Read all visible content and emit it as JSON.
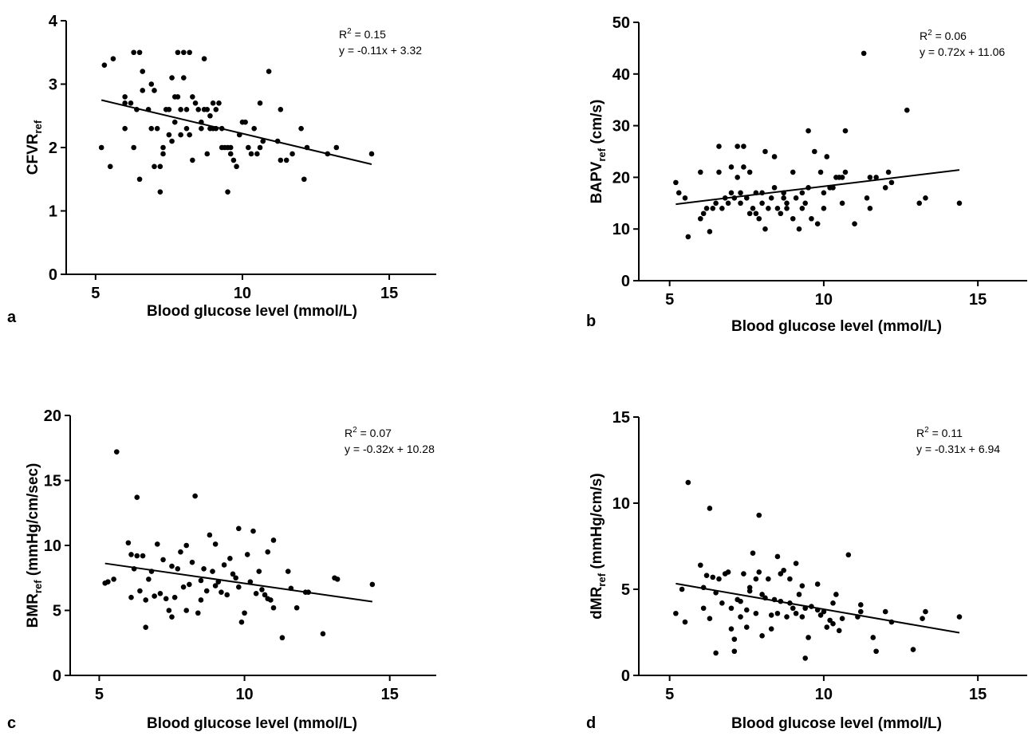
{
  "chart_data": [
    {
      "type": "scatter",
      "panel_label": "a",
      "xlabel": "Blood glucose level (mmol/L)",
      "ylabel_main": "CFVR",
      "ylabel_sub": "ref",
      "ylabel_rest": "",
      "xlim": [
        4,
        16.6
      ],
      "ylim": [
        0,
        4
      ],
      "xticks": [
        5,
        10,
        15
      ],
      "yticks": [
        0,
        1,
        2,
        3,
        4
      ],
      "r2_label": "R",
      "r2_sup": "2",
      "r2_value": " = 0.15",
      "equation": "y = -0.11x + 3.32",
      "trendline": {
        "slope": -0.11,
        "intercept": 3.32,
        "x_start": 5.2,
        "x_end": 14.4
      },
      "points": [
        [
          5.2,
          2.0
        ],
        [
          5.3,
          3.3
        ],
        [
          5.5,
          1.7
        ],
        [
          5.6,
          3.4
        ],
        [
          6.0,
          2.8
        ],
        [
          6.0,
          2.7
        ],
        [
          6.0,
          2.3
        ],
        [
          6.2,
          2.7
        ],
        [
          6.3,
          3.5
        ],
        [
          6.3,
          2.0
        ],
        [
          6.4,
          2.6
        ],
        [
          6.5,
          3.5
        ],
        [
          6.5,
          1.5
        ],
        [
          6.6,
          3.2
        ],
        [
          6.6,
          2.9
        ],
        [
          6.8,
          2.6
        ],
        [
          6.9,
          3.0
        ],
        [
          6.9,
          2.3
        ],
        [
          7.0,
          2.9
        ],
        [
          7.0,
          1.7
        ],
        [
          7.1,
          2.3
        ],
        [
          7.2,
          1.3
        ],
        [
          7.2,
          1.7
        ],
        [
          7.3,
          2.0
        ],
        [
          7.3,
          1.9
        ],
        [
          7.4,
          2.6
        ],
        [
          7.5,
          2.6
        ],
        [
          7.5,
          2.2
        ],
        [
          7.6,
          3.1
        ],
        [
          7.6,
          2.1
        ],
        [
          7.7,
          2.4
        ],
        [
          7.7,
          2.8
        ],
        [
          7.8,
          3.5
        ],
        [
          7.8,
          2.8
        ],
        [
          7.9,
          2.2
        ],
        [
          7.9,
          2.6
        ],
        [
          8.0,
          3.1
        ],
        [
          8.0,
          3.5
        ],
        [
          8.1,
          2.3
        ],
        [
          8.1,
          2.6
        ],
        [
          8.2,
          3.5
        ],
        [
          8.2,
          2.2
        ],
        [
          8.3,
          1.8
        ],
        [
          8.3,
          2.8
        ],
        [
          8.4,
          2.7
        ],
        [
          8.5,
          2.6
        ],
        [
          8.6,
          2.3
        ],
        [
          8.6,
          2.4
        ],
        [
          8.7,
          3.4
        ],
        [
          8.7,
          2.6
        ],
        [
          8.8,
          1.9
        ],
        [
          8.8,
          2.6
        ],
        [
          8.9,
          2.3
        ],
        [
          8.9,
          2.5
        ],
        [
          9.0,
          2.7
        ],
        [
          9.0,
          2.3
        ],
        [
          9.1,
          2.3
        ],
        [
          9.1,
          2.6
        ],
        [
          9.2,
          2.7
        ],
        [
          9.3,
          2.0
        ],
        [
          9.3,
          2.3
        ],
        [
          9.4,
          2.0
        ],
        [
          9.5,
          1.3
        ],
        [
          9.5,
          2.0
        ],
        [
          9.6,
          1.9
        ],
        [
          9.6,
          2.0
        ],
        [
          9.7,
          1.8
        ],
        [
          9.8,
          1.7
        ],
        [
          9.9,
          2.2
        ],
        [
          10.0,
          2.4
        ],
        [
          10.1,
          2.4
        ],
        [
          10.2,
          2.0
        ],
        [
          10.3,
          1.9
        ],
        [
          10.4,
          2.3
        ],
        [
          10.5,
          1.9
        ],
        [
          10.6,
          2.7
        ],
        [
          10.6,
          2.0
        ],
        [
          10.7,
          2.1
        ],
        [
          10.9,
          3.2
        ],
        [
          11.2,
          2.1
        ],
        [
          11.3,
          1.8
        ],
        [
          11.3,
          2.6
        ],
        [
          11.5,
          1.8
        ],
        [
          11.7,
          1.9
        ],
        [
          12.0,
          2.3
        ],
        [
          12.1,
          1.5
        ],
        [
          12.2,
          2.0
        ],
        [
          12.9,
          1.9
        ],
        [
          13.2,
          2.0
        ],
        [
          14.4,
          1.9
        ]
      ]
    },
    {
      "type": "scatter",
      "panel_label": "b",
      "xlabel": "Blood glucose level (mmol/L)",
      "ylabel_main": "BAPV",
      "ylabel_sub": "ref",
      "ylabel_rest": " (cm/s)",
      "xlim": [
        4,
        16.6
      ],
      "ylim": [
        0,
        50
      ],
      "xticks": [
        5,
        10,
        15
      ],
      "yticks": [
        0,
        10,
        20,
        30,
        40,
        50
      ],
      "r2_label": "R",
      "r2_sup": "2",
      "r2_value": " = 0.06",
      "equation": "y = 0.72x + 11.06",
      "trendline": {
        "slope": 0.72,
        "intercept": 11.06,
        "x_start": 5.2,
        "x_end": 14.4
      },
      "points": [
        [
          5.2,
          19
        ],
        [
          5.3,
          17
        ],
        [
          5.5,
          16
        ],
        [
          5.6,
          8.5
        ],
        [
          6.0,
          12
        ],
        [
          6.0,
          21
        ],
        [
          6.1,
          13
        ],
        [
          6.2,
          14
        ],
        [
          6.3,
          9.5
        ],
        [
          6.4,
          14
        ],
        [
          6.5,
          15
        ],
        [
          6.6,
          26
        ],
        [
          6.6,
          21
        ],
        [
          6.7,
          14
        ],
        [
          6.8,
          16
        ],
        [
          6.9,
          15
        ],
        [
          7.0,
          22
        ],
        [
          7.0,
          17
        ],
        [
          7.1,
          16
        ],
        [
          7.2,
          20
        ],
        [
          7.2,
          26
        ],
        [
          7.3,
          17
        ],
        [
          7.3,
          15
        ],
        [
          7.4,
          22
        ],
        [
          7.4,
          26
        ],
        [
          7.5,
          16
        ],
        [
          7.6,
          13
        ],
        [
          7.6,
          21
        ],
        [
          7.7,
          14
        ],
        [
          7.8,
          17
        ],
        [
          7.8,
          13
        ],
        [
          7.9,
          12
        ],
        [
          8.0,
          15
        ],
        [
          8.0,
          17
        ],
        [
          8.1,
          10
        ],
        [
          8.1,
          25
        ],
        [
          8.2,
          14
        ],
        [
          8.3,
          16
        ],
        [
          8.4,
          24
        ],
        [
          8.4,
          18
        ],
        [
          8.5,
          14
        ],
        [
          8.6,
          13
        ],
        [
          8.7,
          17
        ],
        [
          8.7,
          16
        ],
        [
          8.8,
          15
        ],
        [
          8.8,
          14
        ],
        [
          9.0,
          12
        ],
        [
          9.0,
          21
        ],
        [
          9.1,
          16
        ],
        [
          9.2,
          10
        ],
        [
          9.3,
          14
        ],
        [
          9.3,
          17
        ],
        [
          9.4,
          15
        ],
        [
          9.5,
          18
        ],
        [
          9.5,
          29
        ],
        [
          9.6,
          12
        ],
        [
          9.7,
          25
        ],
        [
          9.8,
          11
        ],
        [
          9.9,
          21
        ],
        [
          10.0,
          14
        ],
        [
          10.0,
          17
        ],
        [
          10.1,
          24
        ],
        [
          10.2,
          18
        ],
        [
          10.3,
          18
        ],
        [
          10.4,
          20
        ],
        [
          10.5,
          20
        ],
        [
          10.6,
          20
        ],
        [
          10.6,
          15
        ],
        [
          10.7,
          21
        ],
        [
          10.7,
          29
        ],
        [
          11.0,
          11
        ],
        [
          11.3,
          44
        ],
        [
          11.4,
          16
        ],
        [
          11.5,
          20
        ],
        [
          11.5,
          14
        ],
        [
          11.7,
          20
        ],
        [
          12.0,
          18
        ],
        [
          12.1,
          21
        ],
        [
          12.2,
          19
        ],
        [
          12.7,
          33
        ],
        [
          13.1,
          15
        ],
        [
          13.3,
          16
        ],
        [
          14.4,
          15
        ]
      ]
    },
    {
      "type": "scatter",
      "panel_label": "c",
      "xlabel": "Blood glucose level (mmol/L)",
      "ylabel_main": "BMR",
      "ylabel_sub": "ref",
      "ylabel_rest": " (mmHg/cm/sec)",
      "xlim": [
        4,
        16.6
      ],
      "ylim": [
        0,
        20
      ],
      "xticks": [
        5,
        10,
        15
      ],
      "yticks": [
        0,
        5,
        10,
        15,
        20
      ],
      "r2_label": "R",
      "r2_sup": "2",
      "r2_value": " = 0.07",
      "equation": "y = -0.32x + 10.28",
      "trendline": {
        "slope": -0.32,
        "intercept": 10.28,
        "x_start": 5.2,
        "x_end": 14.4
      },
      "points": [
        [
          5.2,
          7.1
        ],
        [
          5.3,
          7.2
        ],
        [
          5.5,
          7.4
        ],
        [
          5.6,
          17.2
        ],
        [
          6.0,
          10.2
        ],
        [
          6.1,
          9.3
        ],
        [
          6.1,
          6.0
        ],
        [
          6.2,
          8.2
        ],
        [
          6.3,
          13.7
        ],
        [
          6.3,
          9.2
        ],
        [
          6.4,
          6.5
        ],
        [
          6.5,
          9.2
        ],
        [
          6.6,
          5.8
        ],
        [
          6.6,
          3.7
        ],
        [
          6.7,
          7.4
        ],
        [
          6.8,
          8.0
        ],
        [
          6.9,
          6.1
        ],
        [
          7.0,
          10.1
        ],
        [
          7.1,
          6.3
        ],
        [
          7.2,
          8.9
        ],
        [
          7.3,
          5.9
        ],
        [
          7.4,
          5.0
        ],
        [
          7.5,
          8.4
        ],
        [
          7.5,
          4.5
        ],
        [
          7.6,
          6.0
        ],
        [
          7.7,
          8.2
        ],
        [
          7.8,
          9.5
        ],
        [
          7.9,
          6.8
        ],
        [
          8.0,
          10.0
        ],
        [
          8.0,
          5.0
        ],
        [
          8.1,
          7.0
        ],
        [
          8.2,
          8.7
        ],
        [
          8.3,
          13.8
        ],
        [
          8.4,
          4.8
        ],
        [
          8.5,
          7.3
        ],
        [
          8.5,
          5.8
        ],
        [
          8.6,
          8.2
        ],
        [
          8.7,
          6.5
        ],
        [
          8.8,
          10.8
        ],
        [
          8.9,
          8.0
        ],
        [
          9.0,
          6.9
        ],
        [
          9.0,
          10.1
        ],
        [
          9.1,
          7.2
        ],
        [
          9.2,
          6.4
        ],
        [
          9.3,
          8.5
        ],
        [
          9.4,
          6.2
        ],
        [
          9.5,
          9.0
        ],
        [
          9.6,
          7.8
        ],
        [
          9.7,
          7.5
        ],
        [
          9.8,
          11.3
        ],
        [
          9.8,
          6.8
        ],
        [
          9.9,
          4.1
        ],
        [
          10.0,
          4.8
        ],
        [
          10.1,
          9.3
        ],
        [
          10.2,
          7.2
        ],
        [
          10.3,
          11.1
        ],
        [
          10.4,
          6.3
        ],
        [
          10.5,
          8.0
        ],
        [
          10.6,
          6.6
        ],
        [
          10.7,
          6.2
        ],
        [
          10.8,
          5.9
        ],
        [
          10.8,
          9.5
        ],
        [
          10.9,
          5.8
        ],
        [
          11.0,
          10.4
        ],
        [
          11.0,
          5.2
        ],
        [
          11.3,
          2.9
        ],
        [
          11.5,
          8.0
        ],
        [
          11.6,
          6.7
        ],
        [
          11.8,
          5.2
        ],
        [
          12.1,
          6.4
        ],
        [
          12.2,
          6.4
        ],
        [
          12.7,
          3.2
        ],
        [
          13.1,
          7.5
        ],
        [
          13.2,
          7.4
        ],
        [
          14.4,
          7.0
        ]
      ]
    },
    {
      "type": "scatter",
      "panel_label": "d",
      "xlabel": "Blood glucose level (mmol/L)",
      "ylabel_main": "dMR",
      "ylabel_sub": "ref",
      "ylabel_rest": " (mmHg/cm/s)",
      "xlim": [
        4,
        16.6
      ],
      "ylim": [
        0,
        15
      ],
      "xticks": [
        5,
        10,
        15
      ],
      "yticks": [
        0,
        5,
        10,
        15
      ],
      "r2_label": "R",
      "r2_sup": "2",
      "r2_value": " = 0.11",
      "equation": "y = -0.31x + 6.94",
      "trendline": {
        "slope": -0.31,
        "intercept": 6.94,
        "x_start": 5.2,
        "x_end": 14.4
      },
      "points": [
        [
          5.2,
          3.6
        ],
        [
          5.4,
          5.0
        ],
        [
          5.5,
          3.1
        ],
        [
          5.6,
          11.2
        ],
        [
          6.0,
          6.4
        ],
        [
          6.1,
          5.1
        ],
        [
          6.1,
          3.9
        ],
        [
          6.2,
          5.8
        ],
        [
          6.3,
          9.7
        ],
        [
          6.3,
          3.3
        ],
        [
          6.4,
          5.7
        ],
        [
          6.5,
          4.8
        ],
        [
          6.5,
          1.3
        ],
        [
          6.6,
          5.6
        ],
        [
          6.7,
          4.2
        ],
        [
          6.8,
          5.9
        ],
        [
          6.9,
          6.0
        ],
        [
          7.0,
          3.9
        ],
        [
          7.0,
          2.7
        ],
        [
          7.1,
          2.1
        ],
        [
          7.1,
          1.4
        ],
        [
          7.2,
          4.4
        ],
        [
          7.3,
          3.4
        ],
        [
          7.3,
          4.3
        ],
        [
          7.4,
          5.9
        ],
        [
          7.5,
          3.8
        ],
        [
          7.5,
          2.8
        ],
        [
          7.6,
          5.1
        ],
        [
          7.6,
          4.9
        ],
        [
          7.7,
          7.1
        ],
        [
          7.8,
          5.6
        ],
        [
          7.8,
          3.6
        ],
        [
          7.9,
          9.3
        ],
        [
          7.9,
          6.0
        ],
        [
          8.0,
          2.3
        ],
        [
          8.0,
          4.7
        ],
        [
          8.1,
          4.5
        ],
        [
          8.2,
          5.6
        ],
        [
          8.3,
          3.5
        ],
        [
          8.3,
          2.7
        ],
        [
          8.4,
          4.4
        ],
        [
          8.5,
          6.9
        ],
        [
          8.5,
          3.6
        ],
        [
          8.6,
          5.9
        ],
        [
          8.6,
          4.3
        ],
        [
          8.7,
          6.1
        ],
        [
          8.8,
          3.4
        ],
        [
          8.9,
          5.6
        ],
        [
          8.9,
          4.2
        ],
        [
          9.0,
          3.9
        ],
        [
          9.1,
          3.6
        ],
        [
          9.1,
          6.5
        ],
        [
          9.2,
          4.7
        ],
        [
          9.3,
          3.4
        ],
        [
          9.3,
          5.2
        ],
        [
          9.4,
          3.9
        ],
        [
          9.4,
          1.0
        ],
        [
          9.5,
          2.2
        ],
        [
          9.6,
          4.0
        ],
        [
          9.8,
          3.8
        ],
        [
          9.8,
          5.3
        ],
        [
          9.9,
          3.5
        ],
        [
          10.0,
          3.7
        ],
        [
          10.1,
          2.8
        ],
        [
          10.2,
          3.2
        ],
        [
          10.3,
          4.2
        ],
        [
          10.3,
          3.0
        ],
        [
          10.4,
          4.7
        ],
        [
          10.5,
          2.6
        ],
        [
          10.6,
          3.3
        ],
        [
          10.8,
          7.0
        ],
        [
          11.1,
          3.4
        ],
        [
          11.2,
          3.7
        ],
        [
          11.2,
          4.1
        ],
        [
          11.6,
          2.2
        ],
        [
          11.7,
          1.4
        ],
        [
          12.0,
          3.7
        ],
        [
          12.2,
          3.1
        ],
        [
          12.9,
          1.5
        ],
        [
          13.2,
          3.3
        ],
        [
          13.3,
          3.7
        ],
        [
          14.4,
          3.4
        ]
      ]
    }
  ]
}
